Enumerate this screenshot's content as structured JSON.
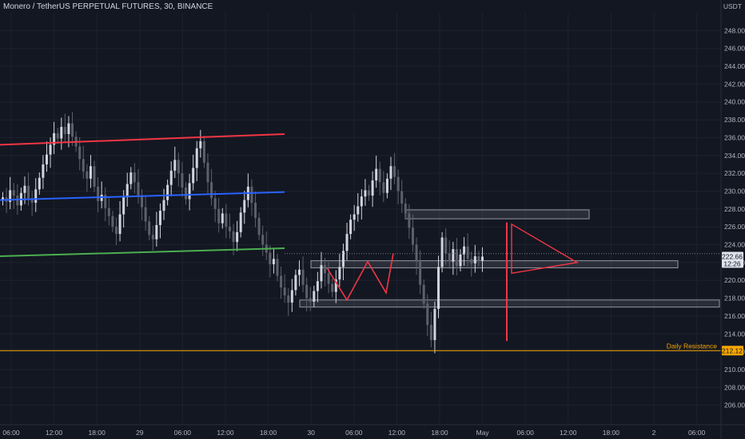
{
  "header": {
    "title": "Monero / TetherUS PERPETUAL FUTURES, 30, BINANCE",
    "currency": "USDT"
  },
  "colors": {
    "background": "#131722",
    "grid": "#1e222d",
    "candle": "#d1d4dc",
    "candle_dim": "#5d606b",
    "resistance_line": "#f23645",
    "mid_line": "#2962ff",
    "support_line": "#4caf50",
    "daily_resistance": "#f7a600",
    "zone_border": "#9598a1",
    "pattern": "#f23645"
  },
  "chart_data": {
    "type": "candlestick",
    "y_axis": {
      "range": [
        204,
        250
      ],
      "ticks": [
        "248.00",
        "246.00",
        "244.00",
        "242.00",
        "240.00",
        "238.00",
        "236.00",
        "234.00",
        "232.00",
        "230.00",
        "228.00",
        "226.00",
        "224.00",
        "222.00",
        "220.00",
        "218.00",
        "216.00",
        "214.00",
        "212.00",
        "210.00",
        "208.00",
        "206.00"
      ]
    },
    "x_axis": {
      "ticks": [
        "06:00",
        "12:00",
        "18:00",
        "29",
        "06:00",
        "12:00",
        "18:00",
        "30",
        "06:00",
        "12:00",
        "18:00",
        "May",
        "06:00",
        "12:00",
        "18:00",
        "2",
        "06:00"
      ]
    },
    "current_price": "222.66",
    "countdown": "12:26",
    "daily_resistance": {
      "label": "Daily Resistance",
      "value": "212.12"
    },
    "trendlines": [
      {
        "name": "channel-top",
        "start": 235.2,
        "end": 236.4
      },
      {
        "name": "channel-mid",
        "start": 229.0,
        "end": 229.9
      },
      {
        "name": "channel-bottom",
        "start": 222.7,
        "end": 223.6
      }
    ],
    "zones": [
      {
        "name": "zone-227",
        "low": 226.9,
        "high": 227.9
      },
      {
        "name": "zone-221",
        "low": 221.4,
        "high": 222.2
      },
      {
        "name": "zone-217",
        "low": 217.0,
        "high": 217.8
      }
    ],
    "closes": [
      229.3,
      228.8,
      230.1,
      229.5,
      228.4,
      229.8,
      230.6,
      229.2,
      228.7,
      230.2,
      231.5,
      233.0,
      234.1,
      235.2,
      236.5,
      235.9,
      237.2,
      236.4,
      237.6,
      236.1,
      235.0,
      233.6,
      232.2,
      231.4,
      232.8,
      230.5,
      228.9,
      229.6,
      228.1,
      227.2,
      226.0,
      225.2,
      227.4,
      229.3,
      230.8,
      232.1,
      231.0,
      229.4,
      228.2,
      226.6,
      225.1,
      224.6,
      226.2,
      227.8,
      229.0,
      230.7,
      232.3,
      233.5,
      232.0,
      230.4,
      229.1,
      230.9,
      232.6,
      234.8,
      235.6,
      233.2,
      231.0,
      229.2,
      228.0,
      226.4,
      227.5,
      226.0,
      225.5,
      224.3,
      225.4,
      227.6,
      229.0,
      230.5,
      228.7,
      227.0,
      225.1,
      224.0,
      223.1,
      221.8,
      222.4,
      220.5,
      219.2,
      218.3,
      217.5,
      218.9,
      220.6,
      221.2,
      219.5,
      218.0,
      217.6,
      218.8,
      219.9,
      221.7,
      220.8,
      219.6,
      218.7,
      220.1,
      221.5,
      223.3,
      225.2,
      226.8,
      227.4,
      228.3,
      229.4,
      230.1,
      229.5,
      231.2,
      232.5,
      231.0,
      229.8,
      231.4,
      232.8,
      231.6,
      230.0,
      228.6,
      227.5,
      225.9,
      224.0,
      222.1,
      219.5,
      217.4,
      215.0,
      213.3,
      216.8,
      221.5,
      224.8,
      223.0,
      222.1,
      223.5,
      221.6,
      222.9,
      223.8,
      222.4,
      221.9,
      222.7,
      222.2,
      222.66
    ]
  }
}
